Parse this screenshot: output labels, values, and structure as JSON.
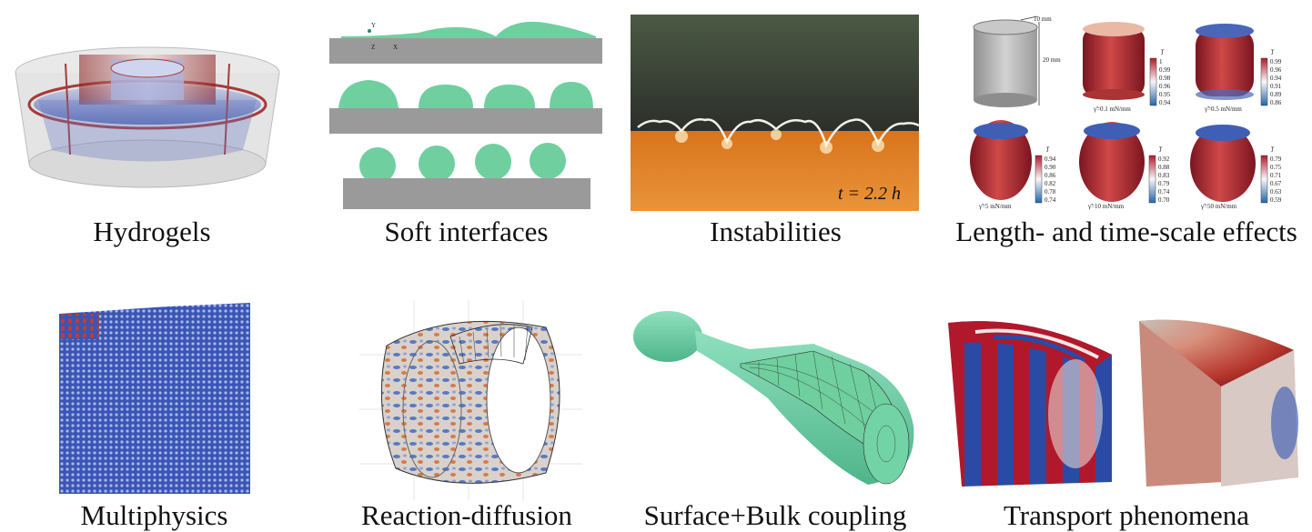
{
  "captions": {
    "hydrogels": "Hydrogels",
    "soft_interfaces": "Soft interfaces",
    "instabilities": "Instabilities",
    "length_time": "Length- and time-scale effects",
    "multiphysics": "Multiphysics",
    "reaction_diffusion": "Reaction-diffusion",
    "surface_bulk": "Surface+Bulk coupling",
    "transport": "Transport phenomena"
  },
  "instabilities": {
    "time_label": "t = 2.2 h"
  },
  "length_scale": {
    "dim_top": "10 mm",
    "dim_side": "20 mm",
    "jbar": "J̅",
    "panels": [
      {
        "label": "γ̃=0.1 mN/mm",
        "ticks": [
          "1",
          "0.99",
          "0.98",
          "0.96",
          "0.95",
          "0.94"
        ]
      },
      {
        "label": "γ̃=0.5 mN/mm",
        "ticks": [
          "0.99",
          "0.96",
          "0.94",
          "0.91",
          "0.89",
          "0.86"
        ]
      },
      {
        "label": "γ̃=5 mN/mm",
        "ticks": [
          "0.94",
          "0.90",
          "0.86",
          "0.82",
          "0.78",
          "0.74"
        ]
      },
      {
        "label": "γ̃=10 mN/mm",
        "ticks": [
          "0.92",
          "0.88",
          "0.83",
          "0.79",
          "0.74",
          "0.70"
        ]
      },
      {
        "label": "γ̃=50 mN/mm",
        "ticks": [
          "0.79",
          "0.75",
          "0.71",
          "0.67",
          "0.63",
          "0.59"
        ]
      }
    ]
  },
  "soft_interfaces": {
    "axis_y": "Y",
    "axis_z": "Z",
    "axis_x": "X"
  },
  "colors": {
    "green": "#6fcf9f",
    "gray": "#9a9a9a",
    "red": "#b2182b",
    "blue": "#2a4aa6"
  }
}
